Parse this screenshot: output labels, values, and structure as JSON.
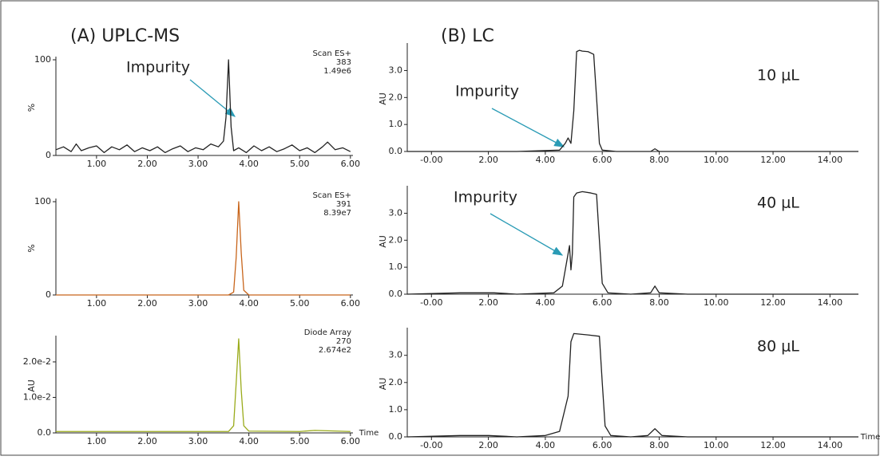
{
  "chart_data": [
    {
      "type": "line",
      "title": "(A) UPLC-MS",
      "ylabel": "%",
      "annotations": [
        "Scan ES+",
        "383",
        "1.49e6"
      ],
      "callout": "Impurity",
      "color": "#222222",
      "xlim": [
        0.2,
        6.05
      ],
      "ylim": [
        0,
        100
      ],
      "xticks": [
        {
          "value": 1,
          "label": "1.00"
        },
        {
          "value": 2,
          "label": "2.00"
        },
        {
          "value": 3,
          "label": "3.00"
        },
        {
          "value": 4,
          "label": "4.00"
        },
        {
          "value": 5,
          "label": "5.00"
        },
        {
          "value": 6,
          "label": "6.00"
        }
      ],
      "yticks": [
        0,
        100
      ],
      "x": [
        0.2,
        0.35,
        0.5,
        0.6,
        0.7,
        0.85,
        1.0,
        1.15,
        1.3,
        1.45,
        1.6,
        1.75,
        1.9,
        2.05,
        2.2,
        2.35,
        2.5,
        2.65,
        2.8,
        2.95,
        3.1,
        3.25,
        3.4,
        3.5,
        3.55,
        3.6,
        3.65,
        3.7,
        3.8,
        3.95,
        4.1,
        4.25,
        4.4,
        4.55,
        4.7,
        4.85,
        5.0,
        5.15,
        5.3,
        5.45,
        5.55,
        5.7,
        5.85,
        6.0
      ],
      "values": [
        6,
        9,
        4,
        12,
        5,
        8,
        10,
        3,
        9,
        6,
        11,
        4,
        8,
        5,
        9,
        3,
        7,
        10,
        4,
        8,
        6,
        12,
        9,
        15,
        40,
        100,
        30,
        5,
        8,
        3,
        10,
        5,
        9,
        4,
        7,
        11,
        5,
        8,
        3,
        9,
        14,
        6,
        8,
        4
      ]
    },
    {
      "type": "line",
      "ylabel": "%",
      "annotations": [
        "Scan ES+",
        "391",
        "8.39e7"
      ],
      "color": "#c8651b",
      "xlim": [
        0.2,
        6.05
      ],
      "ylim": [
        0,
        100
      ],
      "xticks": [
        {
          "value": 1,
          "label": "1.00"
        },
        {
          "value": 2,
          "label": "2.00"
        },
        {
          "value": 3,
          "label": "3.00"
        },
        {
          "value": 4,
          "label": "4.00"
        },
        {
          "value": 5,
          "label": "5.00"
        },
        {
          "value": 6,
          "label": "6.00"
        }
      ],
      "yticks": [
        0,
        100
      ],
      "x": [
        0.2,
        1,
        2,
        3,
        3.6,
        3.7,
        3.75,
        3.8,
        3.85,
        3.9,
        4.0,
        5,
        6
      ],
      "values": [
        0,
        0,
        0,
        0,
        0,
        3,
        40,
        100,
        45,
        5,
        0,
        0,
        0
      ]
    },
    {
      "type": "line",
      "ylabel": "AU",
      "xlabel": "Time",
      "annotations": [
        "Diode Array",
        "270",
        "2.674e2"
      ],
      "color": "#9aab1a",
      "xlim": [
        0.2,
        6.05
      ],
      "ylim": [
        0,
        0.0265
      ],
      "xticks": [
        {
          "value": 1,
          "label": "1.00"
        },
        {
          "value": 2,
          "label": "2.00"
        },
        {
          "value": 3,
          "label": "3.00"
        },
        {
          "value": 4,
          "label": "4.00"
        },
        {
          "value": 5,
          "label": "5.00"
        },
        {
          "value": 6,
          "label": "6.00"
        }
      ],
      "yticks": [
        {
          "value": 0,
          "label": "0.0"
        },
        {
          "value": 0.01,
          "label": "1.0e-2"
        },
        {
          "value": 0.02,
          "label": "2.0e-2"
        }
      ],
      "x": [
        0.2,
        1,
        2,
        3,
        3.6,
        3.7,
        3.75,
        3.8,
        3.85,
        3.9,
        4.0,
        5,
        5.3,
        6
      ],
      "values": [
        0.0004,
        0.0004,
        0.0004,
        0.0004,
        0.0004,
        0.002,
        0.014,
        0.0265,
        0.012,
        0.002,
        0.0005,
        0.0004,
        0.0007,
        0.0004
      ]
    },
    {
      "type": "line",
      "title": "(B) LC",
      "ylabel": "AU",
      "label": "10 μL",
      "callout": "Impurity",
      "color": "#222222",
      "xlim": [
        -0.85,
        15
      ],
      "ylim": [
        0,
        3.9
      ],
      "xticks": [
        {
          "value": 0,
          "label": "-0.00"
        },
        {
          "value": 2,
          "label": "2.00"
        },
        {
          "value": 4,
          "label": "4.00"
        },
        {
          "value": 6,
          "label": "6.00"
        },
        {
          "value": 8,
          "label": "8.00"
        },
        {
          "value": 10,
          "label": "10.00"
        },
        {
          "value": 12,
          "label": "12.00"
        },
        {
          "value": 14,
          "label": "14.00"
        }
      ],
      "yticks": [
        {
          "value": 0,
          "label": "0.0"
        },
        {
          "value": 1,
          "label": "1.0"
        },
        {
          "value": 2,
          "label": "2.0"
        },
        {
          "value": 3,
          "label": "3.0"
        }
      ],
      "x": [
        -0.85,
        1,
        3,
        4.5,
        4.7,
        4.8,
        4.9,
        5.0,
        5.1,
        5.2,
        5.3,
        5.5,
        5.7,
        5.8,
        5.9,
        6.0,
        6.5,
        7.7,
        7.85,
        8.0,
        9,
        12,
        15
      ],
      "values": [
        0,
        0,
        0,
        0.05,
        0.3,
        0.5,
        0.3,
        1.5,
        3.7,
        3.75,
        3.72,
        3.7,
        3.6,
        2.0,
        0.3,
        0.05,
        0,
        0,
        0.1,
        0,
        0,
        0,
        0
      ]
    },
    {
      "type": "line",
      "ylabel": "AU",
      "label": "40 μL",
      "callout": "Impurity",
      "color": "#222222",
      "xlim": [
        -0.85,
        15
      ],
      "ylim": [
        0,
        3.9
      ],
      "xticks": [
        {
          "value": 0,
          "label": "-0.00"
        },
        {
          "value": 2,
          "label": "2.00"
        },
        {
          "value": 4,
          "label": "4.00"
        },
        {
          "value": 6,
          "label": "6.00"
        },
        {
          "value": 8,
          "label": "8.00"
        },
        {
          "value": 10,
          "label": "10.00"
        },
        {
          "value": 12,
          "label": "12.00"
        },
        {
          "value": 14,
          "label": "14.00"
        }
      ],
      "yticks": [
        {
          "value": 0,
          "label": "0.0"
        },
        {
          "value": 1,
          "label": "1.0"
        },
        {
          "value": 2,
          "label": "2.0"
        },
        {
          "value": 3,
          "label": "3.0"
        }
      ],
      "x": [
        -0.85,
        1,
        2.2,
        3,
        4.3,
        4.6,
        4.8,
        4.85,
        4.9,
        4.95,
        5.0,
        5.1,
        5.3,
        5.6,
        5.8,
        5.9,
        6.0,
        6.2,
        7,
        7.7,
        7.85,
        8.0,
        9,
        12,
        15
      ],
      "values": [
        0,
        0.05,
        0.05,
        0,
        0.05,
        0.3,
        1.5,
        1.8,
        0.9,
        1.5,
        3.6,
        3.75,
        3.8,
        3.75,
        3.7,
        2.0,
        0.4,
        0.05,
        0,
        0.05,
        0.3,
        0.05,
        0,
        0,
        0
      ]
    },
    {
      "type": "line",
      "ylabel": "AU",
      "xlabel": "Time",
      "label": "80 μL",
      "color": "#222222",
      "xlim": [
        -0.85,
        15
      ],
      "ylim": [
        0,
        3.9
      ],
      "xticks": [
        {
          "value": 0,
          "label": "-0.00"
        },
        {
          "value": 2,
          "label": "2.00"
        },
        {
          "value": 4,
          "label": "4.00"
        },
        {
          "value": 6,
          "label": "6.00"
        },
        {
          "value": 8,
          "label": "8.00"
        },
        {
          "value": 10,
          "label": "10.00"
        },
        {
          "value": 12,
          "label": "12.00"
        },
        {
          "value": 14,
          "label": "14.00"
        }
      ],
      "yticks": [
        {
          "value": 0,
          "label": "0.0"
        },
        {
          "value": 1,
          "label": "1.0"
        },
        {
          "value": 2,
          "label": "2.0"
        },
        {
          "value": 3,
          "label": "3.0"
        }
      ],
      "x": [
        -0.85,
        1,
        2,
        3,
        4,
        4.5,
        4.8,
        4.9,
        5.0,
        5.5,
        5.9,
        6.0,
        6.1,
        6.3,
        7,
        7.6,
        7.85,
        8.1,
        9,
        12,
        15
      ],
      "values": [
        0,
        0.05,
        0.05,
        0,
        0.05,
        0.2,
        1.5,
        3.5,
        3.8,
        3.75,
        3.7,
        2,
        0.4,
        0.05,
        0,
        0.05,
        0.3,
        0.05,
        0,
        0,
        0
      ]
    }
  ]
}
